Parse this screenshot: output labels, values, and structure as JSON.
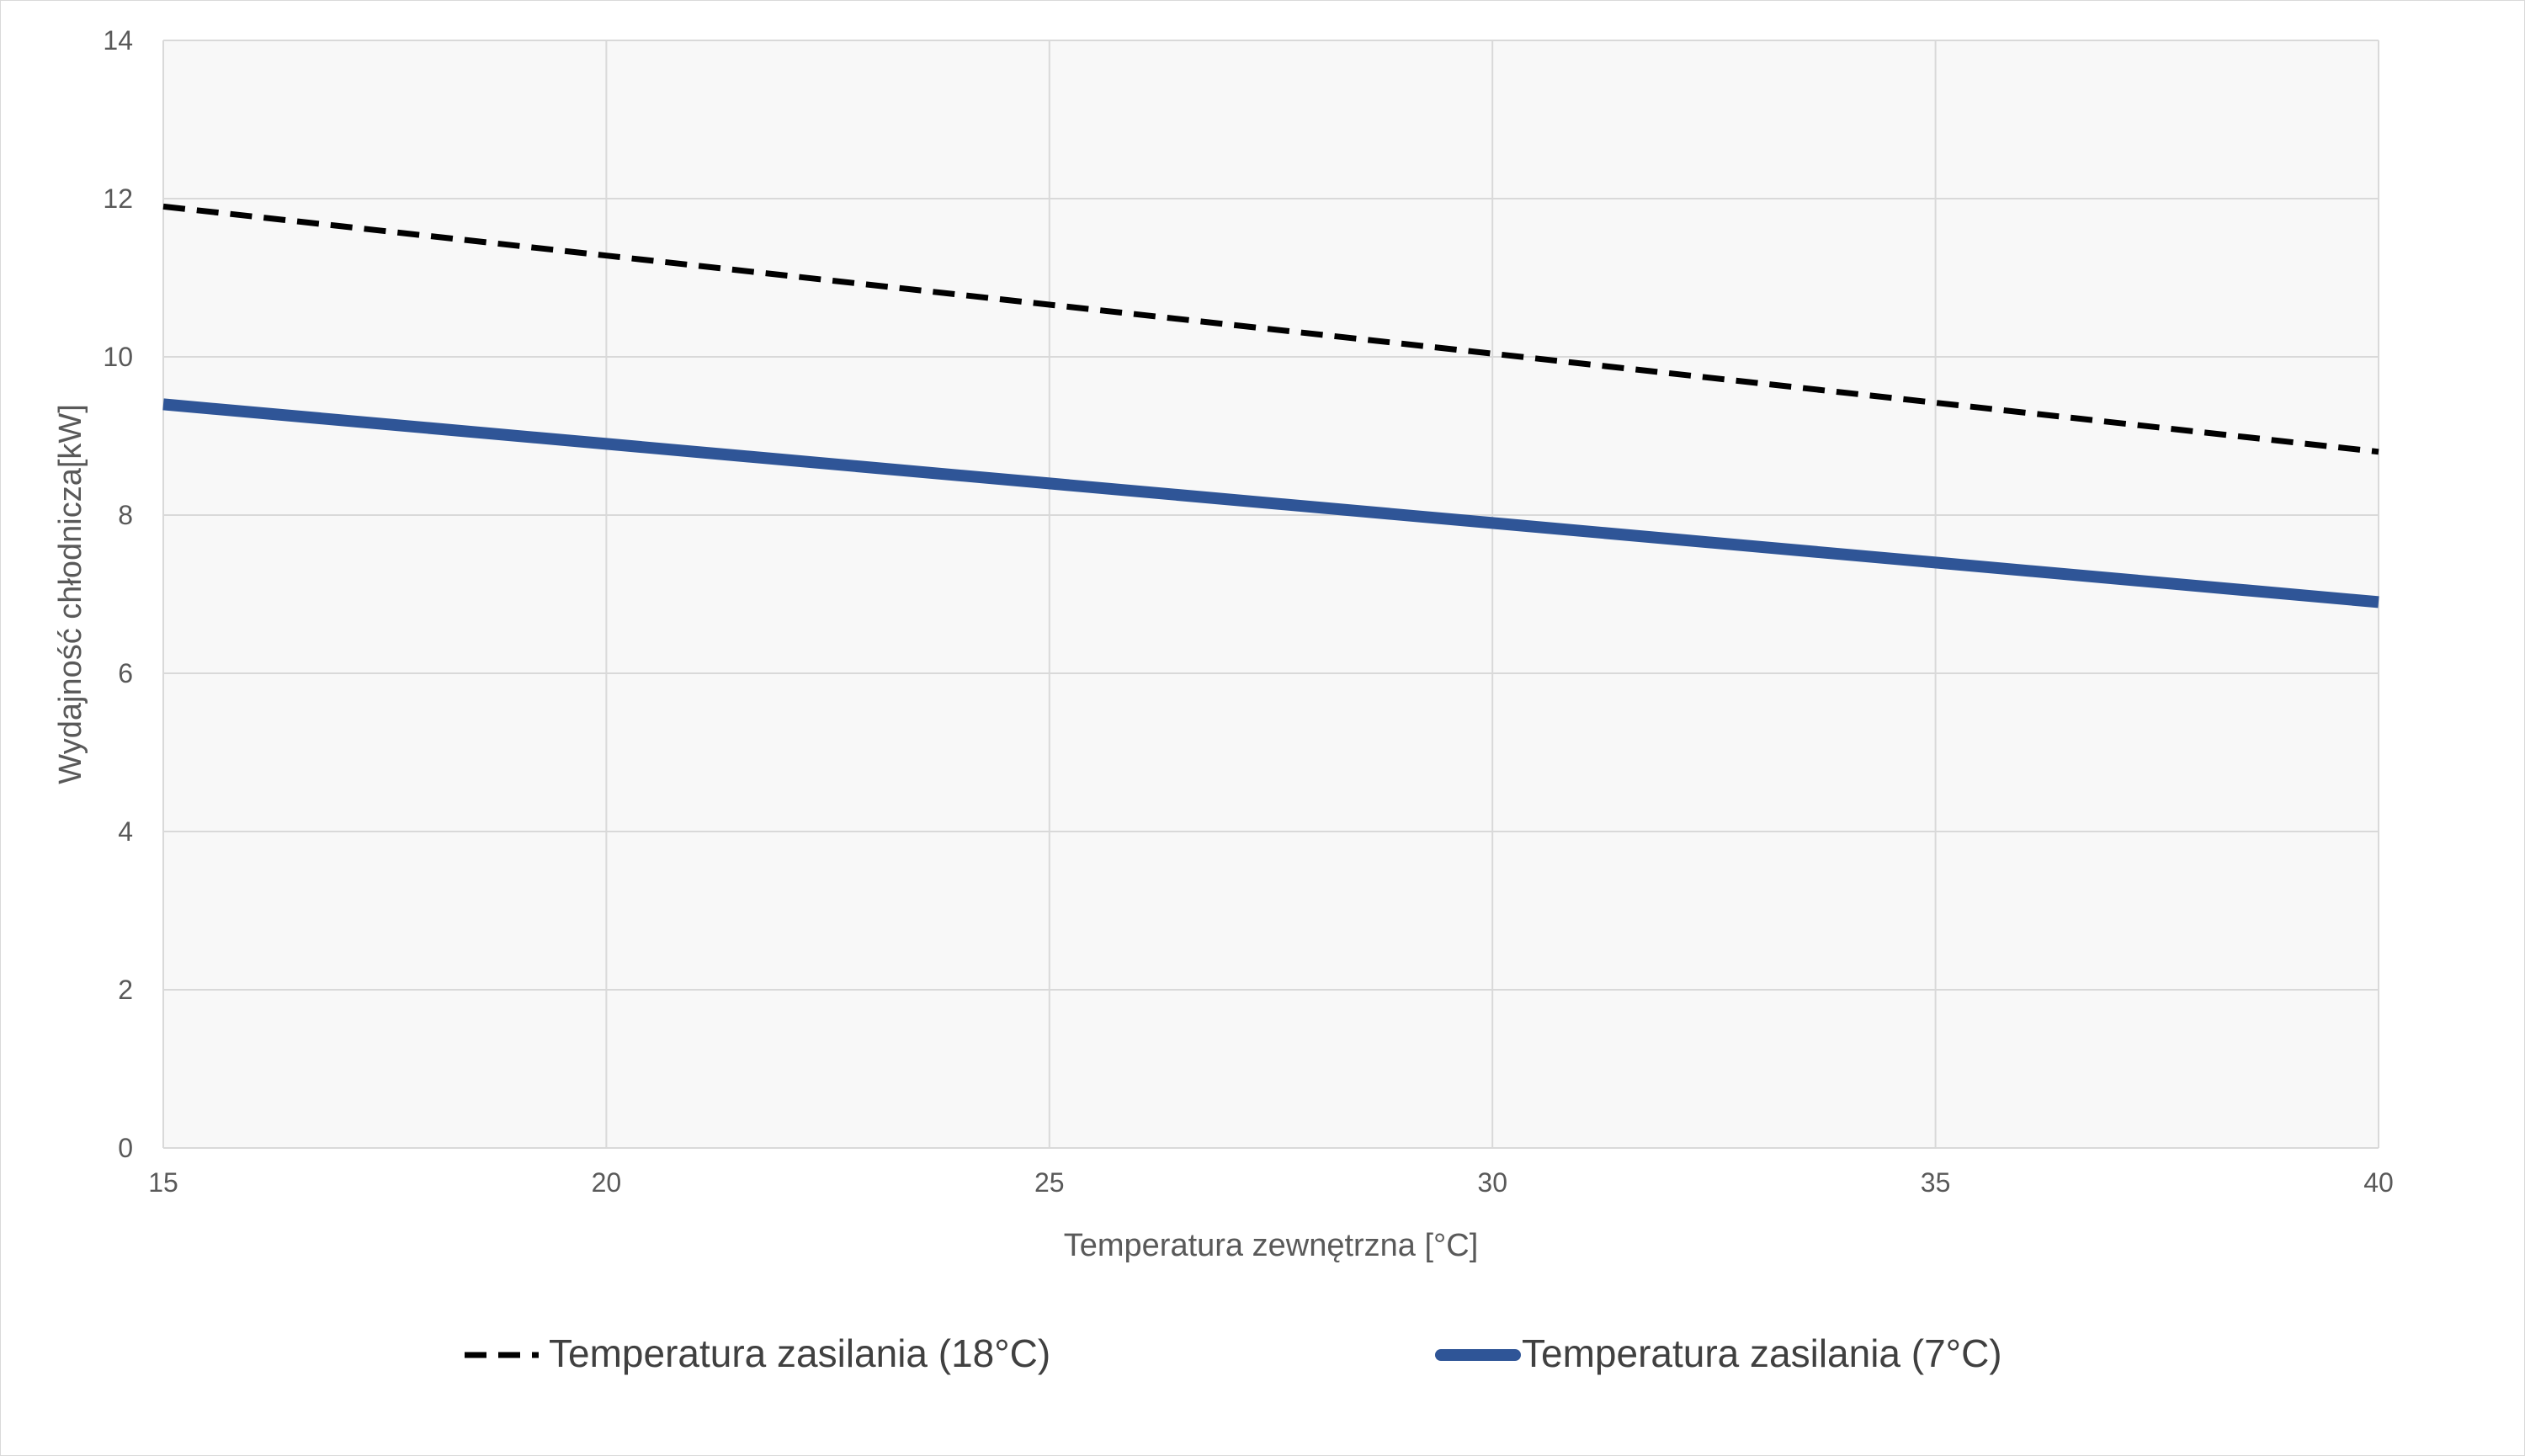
{
  "chart_data": {
    "type": "line",
    "title": "",
    "xlabel": "Temperatura zewnętrzna [°C]",
    "ylabel": "Wydajność chłodnicza[kW]",
    "xlim": [
      15,
      40
    ],
    "ylim": [
      0,
      14
    ],
    "x_ticks": [
      "15",
      "20",
      "25",
      "30",
      "35",
      "40"
    ],
    "y_ticks": [
      "0",
      "2",
      "4",
      "6",
      "8",
      "10",
      "12",
      "14"
    ],
    "grid": true,
    "legend_position": "bottom",
    "series": [
      {
        "name": "Temperatura zasilania (18°C)",
        "color": "#000000",
        "style": "dashed",
        "x": [
          15,
          20,
          25,
          30,
          35,
          40
        ],
        "y": [
          11.9,
          11.28,
          10.66,
          10.04,
          9.42,
          8.8
        ]
      },
      {
        "name": "Temperatura zasilania (7°C)",
        "color": "#2f5597",
        "style": "solid",
        "x": [
          15,
          20,
          25,
          30,
          35,
          40
        ],
        "y": [
          9.4,
          8.9,
          8.4,
          7.9,
          7.4,
          6.9
        ]
      }
    ]
  }
}
